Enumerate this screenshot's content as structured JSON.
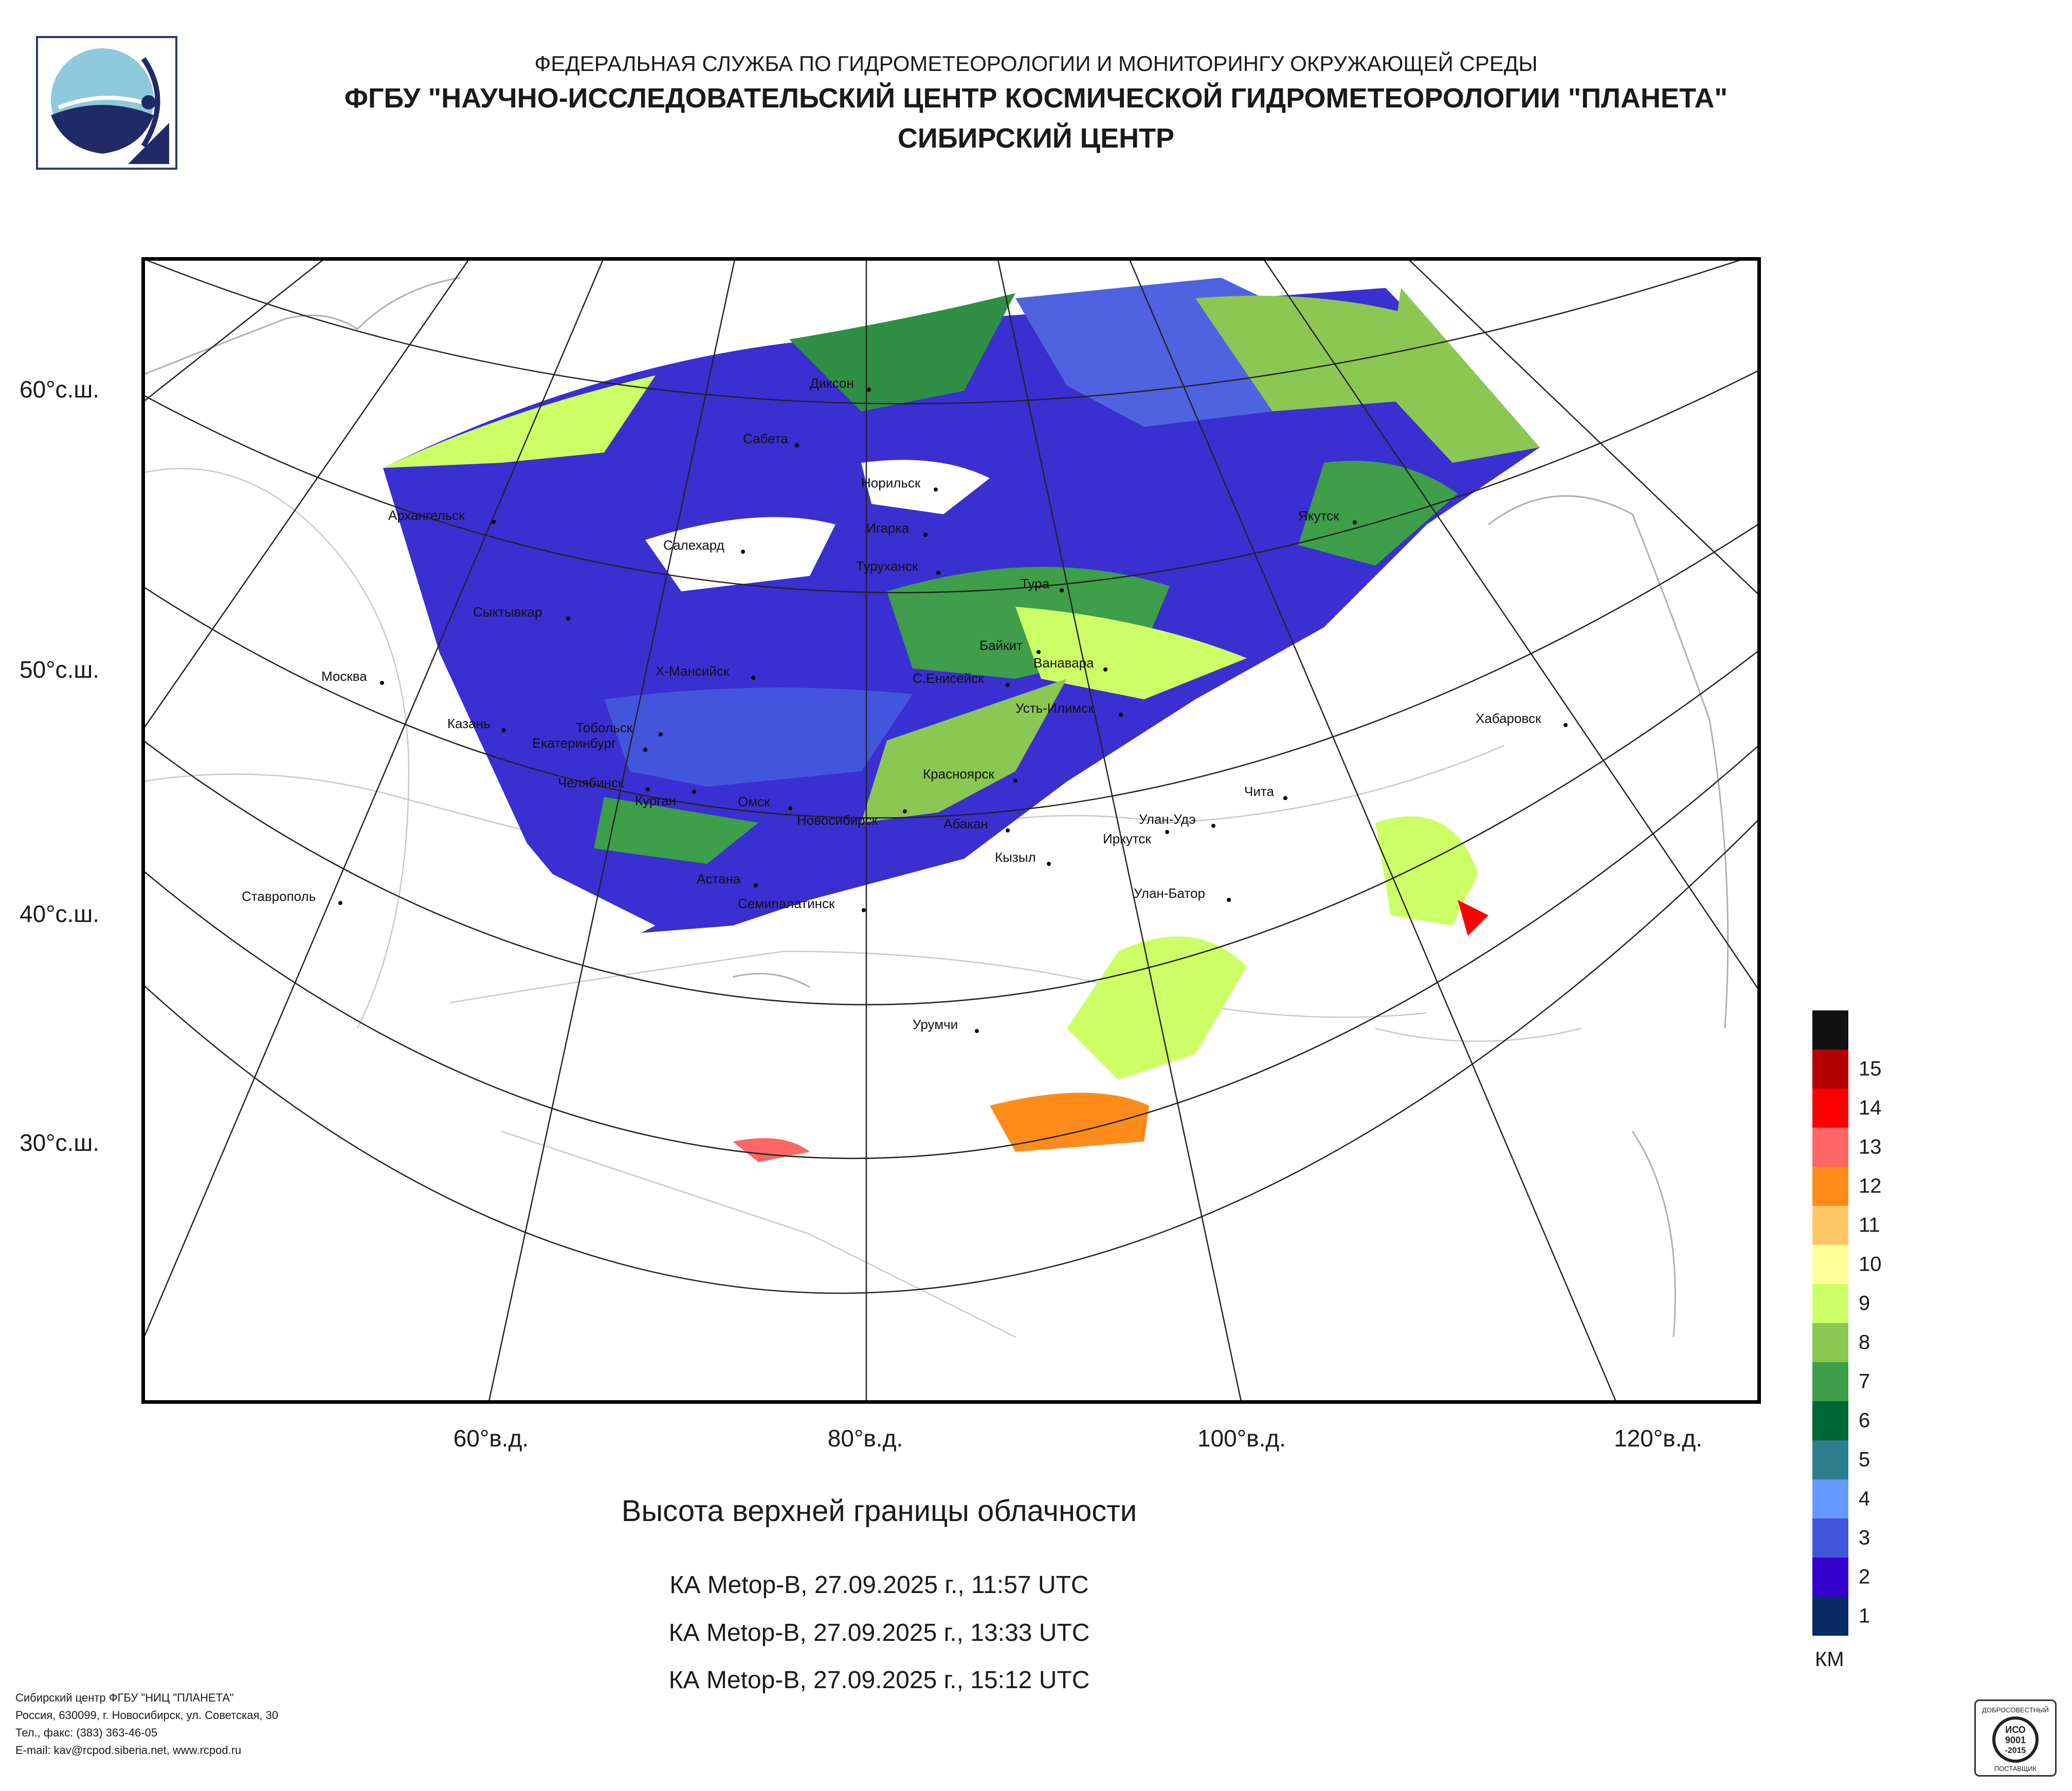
{
  "header": {
    "line1": "ФЕДЕРАЛЬНАЯ СЛУЖБА ПО ГИДРОМЕТЕОРОЛОГИИ И МОНИТОРИНГУ ОКРУЖАЮЩЕЙ СРЕДЫ",
    "line2": "ФГБУ \"НАУЧНО-ИССЛЕДОВАТЕЛЬСКИЙ ЦЕНТР КОСМИЧЕСКОЙ ГИДРОМЕТЕОРОЛОГИИ \"ПЛАНЕТА\"",
    "line3": "СИБИРСКИЙ ЦЕНТР"
  },
  "latitude_labels": [
    "60°с.ш.",
    "50°с.ш.",
    "40°с.ш.",
    "30°с.ш."
  ],
  "longitude_labels": [
    "60°в.д.",
    "80°в.д.",
    "100°в.д.",
    "120°в.д."
  ],
  "cities": [
    "Диксон",
    "Сабета",
    "Норильск",
    "Архангельск",
    "Салехард",
    "Игарка",
    "Якутск",
    "Туруханск",
    "Тура",
    "Сыктывкар",
    "Байкит",
    "Ванавара",
    "Москва",
    "Х-Мансийск",
    "С.Енисейск",
    "Усть-Илимск",
    "Хабаровск",
    "Казань",
    "Тобольск",
    "Екатеринбург",
    "Красноярск",
    "Чита",
    "Челябинск",
    "Курган",
    "Омск",
    "Новосибирск",
    "Улан-Удэ",
    "Абакан",
    "Иркутск",
    "Кызыл",
    "Астана",
    "Улан-Батор",
    "Ставрополь",
    "Семипалатинск",
    "Урумчи"
  ],
  "caption": "Высота верхней границы облачности",
  "satellite_passes": [
    "КА Metop-B, 27.09.2025 г., 11:57 UTC",
    "КА Metop-B, 27.09.2025 г., 13:33 UTC",
    "КА Metop-B, 27.09.2025 г., 15:12 UTC"
  ],
  "legend": {
    "unit": "КМ",
    "items": [
      {
        "label": "",
        "color": "#111111"
      },
      {
        "label": "15",
        "color": "#b30000"
      },
      {
        "label": "14",
        "color": "#ff0000"
      },
      {
        "label": "13",
        "color": "#ff6666"
      },
      {
        "label": "12",
        "color": "#ff8c1a"
      },
      {
        "label": "11",
        "color": "#ffc766"
      },
      {
        "label": "10",
        "color": "#ffff99"
      },
      {
        "label": "9",
        "color": "#ccff66"
      },
      {
        "label": "8",
        "color": "#8cc653"
      },
      {
        "label": "7",
        "color": "#3f9e4a"
      },
      {
        "label": "6",
        "color": "#006633"
      },
      {
        "label": "5",
        "color": "#2e7d8c"
      },
      {
        "label": "4",
        "color": "#6699ff"
      },
      {
        "label": "3",
        "color": "#4455dd"
      },
      {
        "label": "2",
        "color": "#3300cc"
      },
      {
        "label": "1",
        "color": "#0a2a66"
      }
    ]
  },
  "footer": {
    "line1": "Сибирский центр ФГБУ \"НИЦ \"ПЛАНЕТА\"",
    "line2": "Россия, 630099, г. Новосибирск, ул. Советская, 30",
    "line3": "Тел., факс: (383) 363-46-05",
    "line4": "E-mail: kav@rcpod.siberia.net, www.rcpod.ru"
  },
  "certificate": {
    "top": "ДОБРОСОВЕСТНЫЙ",
    "middle1": "ИСО",
    "middle2": "9001",
    "middle3": "-2015",
    "bottom": "ПОСТАВЩИК"
  }
}
